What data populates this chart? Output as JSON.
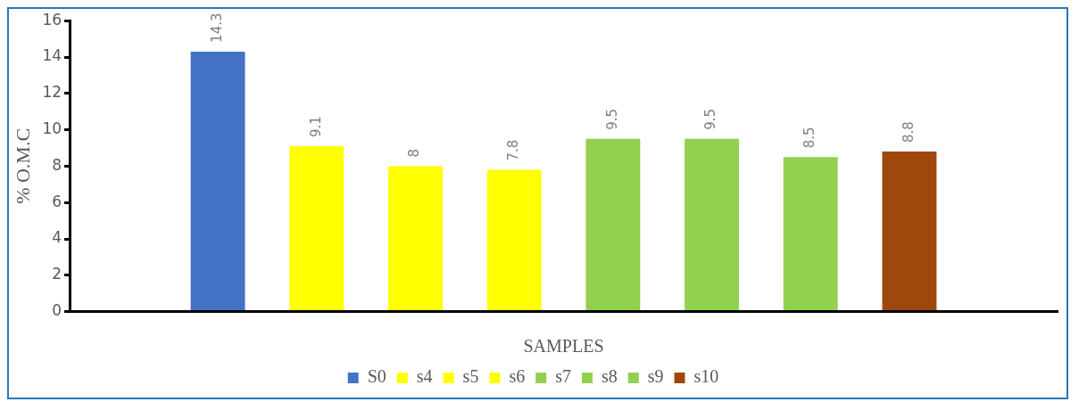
{
  "chart_data": {
    "type": "bar",
    "xlabel": "SAMPLES",
    "ylabel": "% O.M.C",
    "categories": [
      null,
      null,
      null,
      null,
      null,
      null,
      null,
      null,
      null,
      null
    ],
    "series": [
      {
        "name": "S0",
        "color": "#4472c4",
        "values": [
          null,
          14.3,
          null,
          null,
          null,
          null,
          null,
          null,
          null,
          null
        ]
      },
      {
        "name": "s4",
        "color": "#ffff00",
        "values": [
          null,
          null,
          9.1,
          null,
          null,
          null,
          null,
          null,
          null,
          null
        ]
      },
      {
        "name": "s5",
        "color": "#ffff00",
        "values": [
          null,
          null,
          null,
          8,
          null,
          null,
          null,
          null,
          null,
          null
        ]
      },
      {
        "name": "s6",
        "color": "#ffff00",
        "values": [
          null,
          null,
          null,
          null,
          7.8,
          null,
          null,
          null,
          null,
          null
        ]
      },
      {
        "name": "s7",
        "color": "#92d050",
        "values": [
          null,
          null,
          null,
          null,
          null,
          9.5,
          null,
          null,
          null,
          null
        ]
      },
      {
        "name": "s8",
        "color": "#92d050",
        "values": [
          null,
          null,
          null,
          null,
          null,
          null,
          9.5,
          null,
          null,
          null
        ]
      },
      {
        "name": "s9",
        "color": "#92d050",
        "values": [
          null,
          null,
          null,
          null,
          null,
          null,
          null,
          8.5,
          null,
          null
        ]
      },
      {
        "name": "s10",
        "color": "#9e480e",
        "values": [
          null,
          null,
          null,
          null,
          null,
          null,
          null,
          null,
          8.8,
          null
        ]
      }
    ],
    "ylim": [
      0,
      16
    ],
    "yticks": [
      0,
      2,
      4,
      6,
      8,
      10,
      12,
      14,
      16
    ],
    "grid": false,
    "legend": "bottom",
    "data_labels": true
  }
}
